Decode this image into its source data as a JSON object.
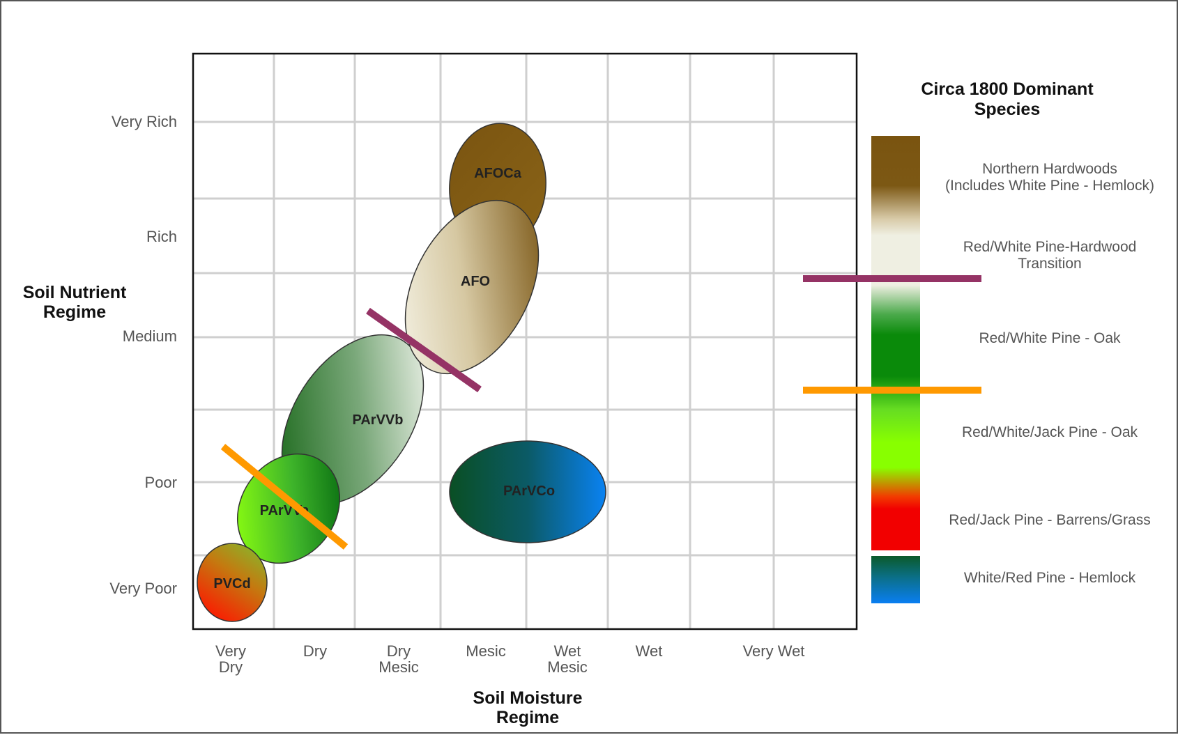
{
  "y_axis": {
    "title_lines": [
      "Soil Nutrient",
      "Regime"
    ],
    "ticks": [
      "Very Rich",
      "Rich",
      "Medium",
      "Poor",
      "Very Poor"
    ]
  },
  "x_axis": {
    "title_lines": [
      "Soil Moisture",
      "Regime"
    ],
    "ticks": [
      [
        "Very",
        "Dry"
      ],
      [
        "Dry"
      ],
      [
        "Dry",
        "Mesic"
      ],
      [
        "Mesic"
      ],
      [
        "Wet",
        "Mesic"
      ],
      [
        "Wet"
      ],
      [
        "Very Wet"
      ]
    ]
  },
  "zones": [
    "AFOCa",
    "AFO",
    "PArVVb",
    "PArVVa",
    "PVCd",
    "PArVCo"
  ],
  "legend": {
    "title_lines": [
      "Circa 1800 Dominant",
      "Species"
    ],
    "entries": [
      [
        "Northern Hardwoods",
        "(Includes White Pine - Hemlock)"
      ],
      [
        "Red/White Pine-Hardwood",
        "Transition"
      ],
      [
        "Red/White Pine - Oak"
      ],
      [
        "Red/White/Jack Pine - Oak"
      ],
      [
        "Red/Jack Pine - Barrens/Grass"
      ],
      [
        "White/Red Pine - Hemlock"
      ]
    ]
  },
  "colors": {
    "northern_hardwoods": "#7a5410",
    "transition": "#efefe2",
    "pine_oak": "#0a8a0a",
    "jack_pine_oak": "#88ff00",
    "barrens": "#f20000",
    "hemlock_dark": "#0b5a2a",
    "hemlock_blue": "#0a7ef2",
    "purple_marker": "#953365",
    "orange_marker": "#ff9900"
  }
}
